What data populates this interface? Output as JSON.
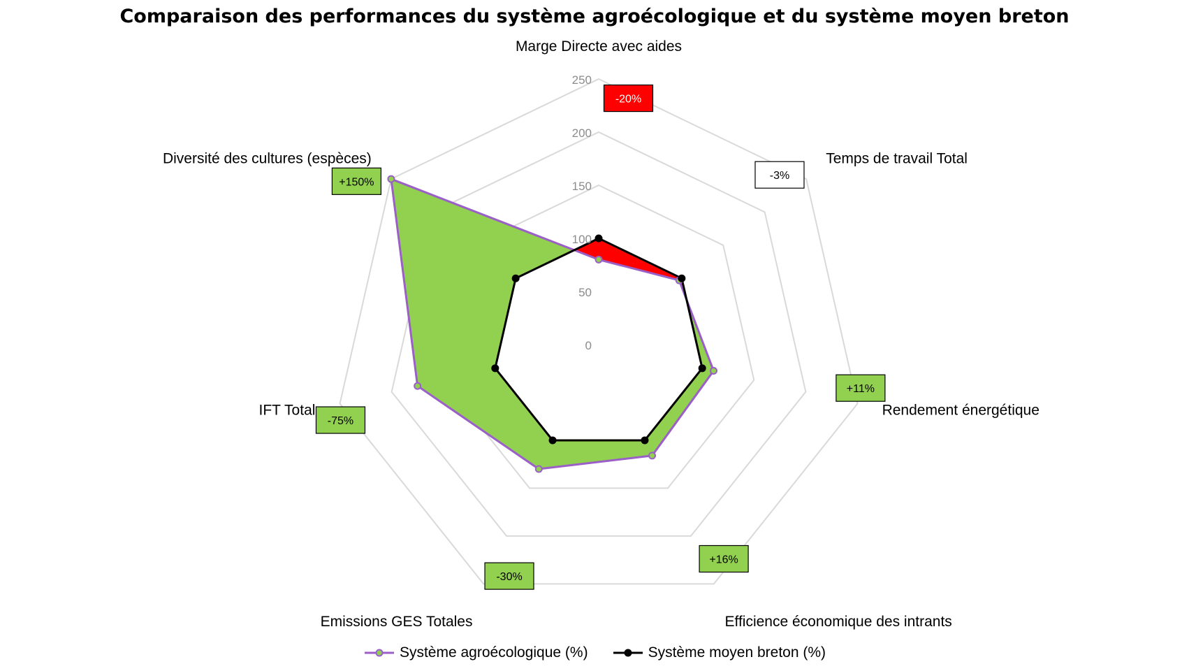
{
  "chart_data": {
    "type": "radar",
    "title": "Comparaison des performances du système agroécologique et du système moyen breton",
    "axes": [
      "Marge Directe avec aides",
      "Temps de travail Total",
      "Rendement énergétique",
      "Efficience économique des intrants",
      "Emissions GES Totales",
      "IFT Total",
      "Diversité des cultures (espèces)"
    ],
    "radial_ticks": [
      "0",
      "50",
      "100",
      "150",
      "200",
      "250"
    ],
    "rmax": 250,
    "series": [
      {
        "name": "Système agroécologique (%)",
        "values": [
          80,
          97,
          111,
          116,
          130,
          175,
          250
        ],
        "color": "#9B5FC8",
        "fill": "#92D050"
      },
      {
        "name": "Système moyen breton (%)",
        "values": [
          100,
          100,
          100,
          100,
          100,
          100,
          100
        ],
        "color": "#000000"
      }
    ],
    "diff_labels": [
      "-20%",
      "-3%",
      "+11%",
      "+16%",
      "-30%",
      "-75%",
      "+150%"
    ],
    "diff_colors": [
      "#FF0000",
      "#FFFFFF",
      "#92D050",
      "#92D050",
      "#92D050",
      "#92D050",
      "#92D050"
    ],
    "diff_text_colors": [
      "#FFFFFF",
      "#000000",
      "#000000",
      "#000000",
      "#000000",
      "#000000",
      "#000000"
    ],
    "loss_fill": "#FF0000",
    "grid": true,
    "legend_position": "bottom"
  }
}
